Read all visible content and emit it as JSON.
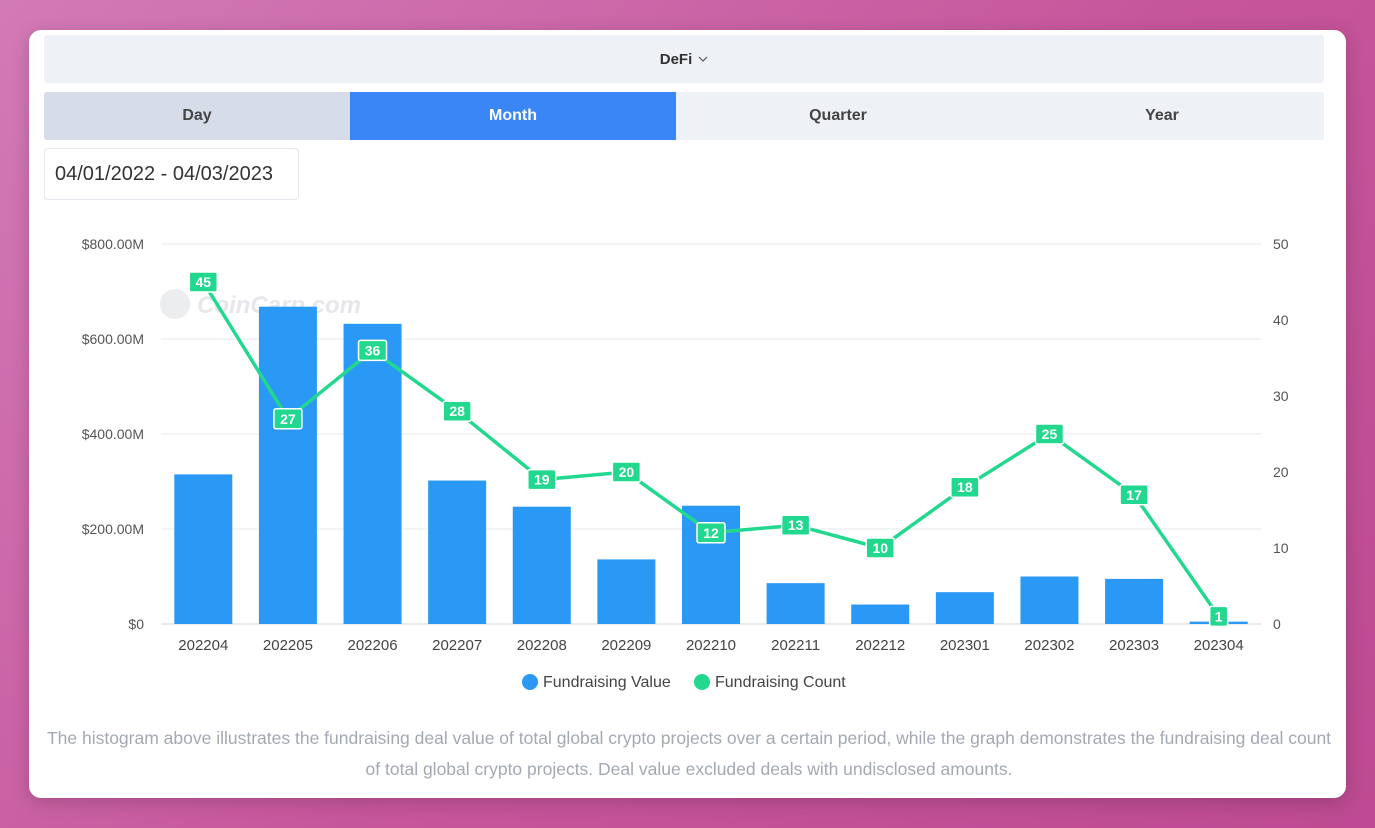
{
  "category": {
    "label": "DeFi"
  },
  "tabs": [
    {
      "label": "Day"
    },
    {
      "label": "Month"
    },
    {
      "label": "Quarter"
    },
    {
      "label": "Year"
    }
  ],
  "date_range": "04/01/2022 - 04/03/2023",
  "watermark": "CoinCarp.com",
  "footnote": "The histogram above illustrates the fundraising deal value of total global crypto projects over a certain period, while the graph demonstrates the fundraising deal count of total global crypto projects. Deal value excluded deals with undisclosed amounts.",
  "colors": {
    "bar": "#2a98f5",
    "line": "#22d88e",
    "active_tab": "#3b86f7"
  },
  "chart_data": {
    "type": "bar",
    "categories": [
      "202204",
      "202205",
      "202206",
      "202207",
      "202208",
      "202209",
      "202210",
      "202211",
      "202212",
      "202301",
      "202302",
      "202303",
      "202304"
    ],
    "series": [
      {
        "name": "Fundraising Value",
        "type": "bar",
        "axis": "left",
        "values": [
          315,
          668,
          632,
          302,
          247,
          136,
          249,
          86,
          41,
          67,
          100,
          95,
          5
        ]
      },
      {
        "name": "Fundraising Count",
        "type": "line",
        "axis": "right",
        "values": [
          45,
          27,
          36,
          28,
          19,
          20,
          12,
          13,
          10,
          18,
          25,
          17,
          1
        ]
      }
    ],
    "y_left": {
      "ticks": [
        "$0",
        "$200.00M",
        "$400.00M",
        "$600.00M",
        "$800.00M"
      ],
      "range": [
        0,
        800
      ]
    },
    "y_right": {
      "ticks": [
        "0",
        "10",
        "20",
        "30",
        "40",
        "50"
      ],
      "range": [
        0,
        50
      ]
    },
    "legend_position": "bottom",
    "grid": true
  }
}
